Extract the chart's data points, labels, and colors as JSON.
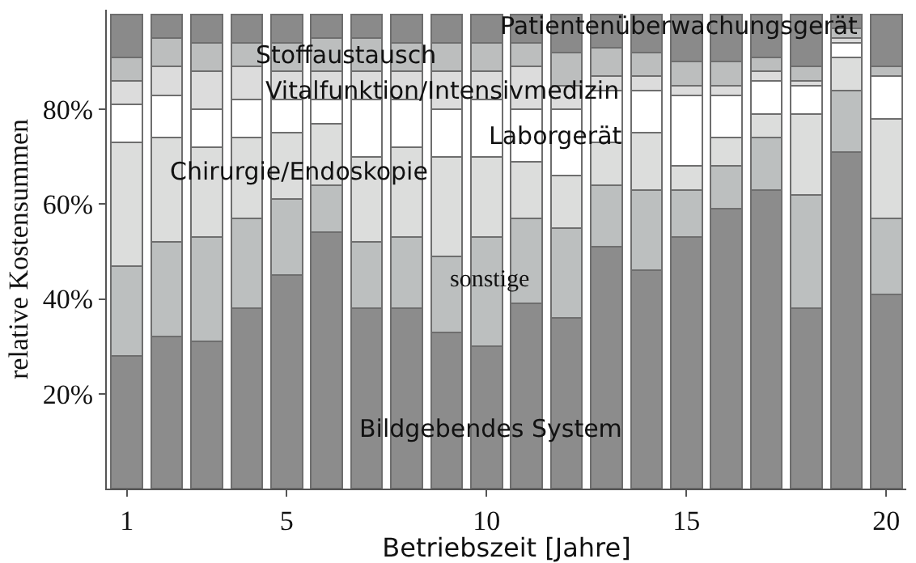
{
  "chart_data": {
    "type": "bar",
    "stacked": true,
    "xlabel": "Betriebszeit [Jahre]",
    "ylabel": "relative Kostensummen",
    "x": [
      1,
      2,
      3,
      4,
      5,
      6,
      7,
      8,
      9,
      10,
      11,
      12,
      13,
      14,
      15,
      16,
      17,
      18,
      19,
      20
    ],
    "xlim": [
      0.5,
      20.5
    ],
    "xticks": [
      1,
      5,
      10,
      15,
      20
    ],
    "ylim": [
      0,
      101
    ],
    "yticks": [
      {
        "value": 20,
        "label": "20%"
      },
      {
        "value": 40,
        "label": "40%"
      },
      {
        "value": 60,
        "label": "60%"
      },
      {
        "value": 80,
        "label": "80%"
      }
    ],
    "grid": false,
    "legend": false,
    "series": [
      {
        "name": "Bildgebendes System",
        "color": "#8c8c8c",
        "values": [
          28,
          32,
          31,
          38,
          45,
          54,
          38,
          38,
          33,
          30,
          39,
          36,
          51,
          46,
          53,
          59,
          63,
          38,
          71,
          41
        ]
      },
      {
        "name": "sonstige",
        "color": "#bcbfbf",
        "values": [
          19,
          20,
          22,
          19,
          16,
          10,
          14,
          15,
          16,
          23,
          18,
          19,
          13,
          17,
          10,
          9,
          11,
          24,
          13,
          16
        ]
      },
      {
        "name": "Chirurgie/Endoskopie",
        "color": "#dcdddc",
        "values": [
          26,
          22,
          19,
          17,
          14,
          13,
          18,
          19,
          21,
          17,
          12,
          11,
          9,
          12,
          5,
          6,
          5,
          17,
          7,
          21
        ]
      },
      {
        "name": "Laborgerät",
        "color": "#ffffff",
        "values": [
          8,
          9,
          8,
          8,
          7,
          5,
          12,
          10,
          10,
          12,
          11,
          14,
          11,
          9,
          15,
          9,
          7,
          6,
          3,
          9
        ]
      },
      {
        "name": "Vitalfunktion/Intensivmedizin",
        "color": "#dcdcdc",
        "values": [
          5,
          6,
          8,
          7,
          6,
          6,
          6,
          6,
          8,
          6,
          9,
          5,
          3,
          3,
          2,
          2,
          2,
          1,
          1,
          0
        ]
      },
      {
        "name": "Stoffaustausch",
        "color": "#bcbebe",
        "values": [
          5,
          6,
          6,
          5,
          6,
          7,
          7,
          6,
          6,
          6,
          5,
          7,
          6,
          5,
          5,
          5,
          3,
          3,
          2,
          2
        ]
      },
      {
        "name": "Patientenüberwachungsgerät",
        "color": "#8a8a8a",
        "values": [
          9,
          5,
          6,
          6,
          6,
          5,
          5,
          6,
          6,
          6,
          6,
          8,
          7,
          8,
          10,
          10,
          9,
          11,
          3,
          11
        ]
      }
    ]
  }
}
